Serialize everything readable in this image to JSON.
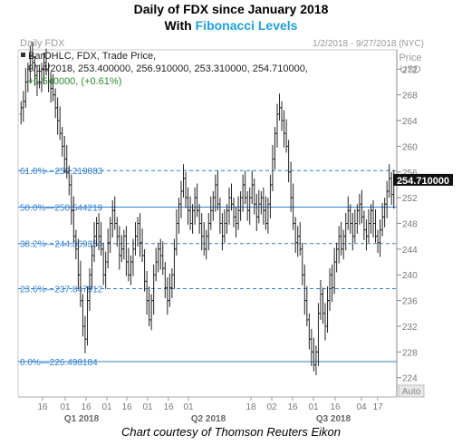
{
  "header": {
    "title_prefix": "Daily of FDX since January 2018",
    "title2_a": "With ",
    "title2_b": "Fibonacci Levels",
    "accent_color": "#1fa0d8"
  },
  "footer": {
    "credit": "Chart courtesy of Thomson Reuters Eikon"
  },
  "panel": {
    "name": "Daily FDX",
    "date_range": "1/2/2018 - 9/27/2018 (NYC)",
    "price_label": "Price",
    "currency": "USD",
    "auto_label": "Auto",
    "legend_series": "BarOHLC, FDX, Trade Price,",
    "legend_values": "9/14/2018, 253.400000, 256.910000, 253.310000, 254.710000,",
    "legend_change": "+1.540000, (+0.61%)",
    "last_price": "254.710000"
  },
  "chart_data": {
    "type": "ohlc",
    "title": "Daily of FDX since January 2018",
    "ylim": [
      221,
      275
    ],
    "ylabel": "Price (USD)",
    "y_ticks": [
      224,
      228,
      232,
      236,
      240,
      244,
      248,
      252,
      256,
      260,
      264,
      268,
      272
    ],
    "x_ticks": [
      "16",
      "01",
      "16",
      "01",
      "16",
      "01",
      "16",
      "01",
      "18",
      "02",
      "16",
      "01",
      "16",
      "04",
      "17"
    ],
    "quarters": [
      "Q1 2018",
      "Q2 2018",
      "Q3 2018"
    ],
    "fib_levels": [
      {
        "label": "61.8%",
        "value": 256.219083,
        "text": "256.219083"
      },
      {
        "label": "50.0%",
        "value": 250.544219,
        "text": "250.544219"
      },
      {
        "label": "38.2%",
        "value": 244.869354,
        "text": "244.869354"
      },
      {
        "label": "23.6%",
        "value": 237.847912,
        "text": "237.847912"
      },
      {
        "label": "0.0%",
        "value": 226.498184,
        "text": "226.498184"
      }
    ],
    "close": [
      266,
      267,
      270,
      272,
      274,
      273,
      271,
      270,
      270,
      272,
      273,
      272,
      270,
      269,
      268,
      266,
      264,
      262,
      260,
      258,
      256,
      254,
      250,
      246,
      244,
      240,
      236,
      232,
      230,
      236,
      240,
      243,
      246,
      248,
      246,
      244,
      240,
      242,
      245,
      248,
      250,
      248,
      246,
      243,
      244,
      246,
      242,
      240,
      242,
      244,
      246,
      248,
      245,
      243,
      239,
      236,
      233,
      236,
      240,
      242,
      244,
      243,
      241,
      238,
      236,
      238,
      240,
      244,
      248,
      251,
      253,
      255,
      252,
      250,
      248,
      250,
      252,
      250,
      248,
      246,
      244,
      246,
      248,
      250,
      252,
      254,
      251,
      248,
      246,
      248,
      250,
      252,
      251,
      249,
      248,
      250,
      252,
      254,
      252,
      250,
      252,
      254,
      251,
      249,
      251,
      252,
      250,
      248,
      251,
      254,
      258,
      262,
      265,
      266,
      264,
      262,
      260,
      256,
      252,
      248,
      245,
      246,
      244,
      240,
      236,
      233,
      230,
      228,
      226,
      228,
      234,
      237,
      234,
      232,
      236,
      240,
      238,
      242,
      244,
      246,
      244,
      246,
      248,
      250,
      248,
      246,
      248,
      250,
      251,
      249,
      247,
      246,
      248,
      250,
      248,
      246,
      245,
      247,
      249,
      251,
      253,
      255,
      252.5,
      254.71
    ]
  }
}
